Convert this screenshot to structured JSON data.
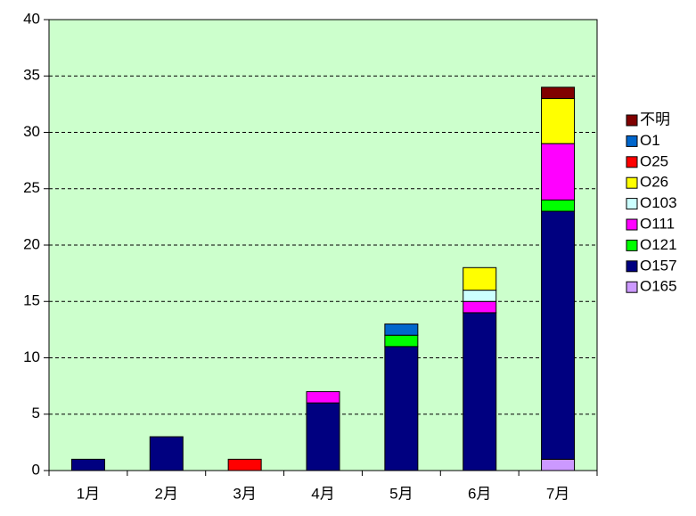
{
  "chart_data": {
    "type": "stacked_bar",
    "categories": [
      "1月",
      "2月",
      "3月",
      "4月",
      "5月",
      "6月",
      "7月"
    ],
    "series": [
      {
        "name": "O165",
        "color": "#cc99ff",
        "values": [
          0,
          0,
          0,
          0,
          0,
          0,
          1
        ]
      },
      {
        "name": "O157",
        "color": "#000080",
        "values": [
          1,
          3,
          0,
          6,
          11,
          14,
          22
        ]
      },
      {
        "name": "O121",
        "color": "#00ff00",
        "values": [
          0,
          0,
          0,
          0,
          1,
          0,
          1
        ]
      },
      {
        "name": "O111",
        "color": "#ff00ff",
        "values": [
          0,
          0,
          0,
          1,
          0,
          1,
          5
        ]
      },
      {
        "name": "O103",
        "color": "#ccffff",
        "values": [
          0,
          0,
          0,
          0,
          0,
          1,
          0
        ]
      },
      {
        "name": "O26",
        "color": "#ffff00",
        "values": [
          0,
          0,
          0,
          0,
          0,
          2,
          4
        ]
      },
      {
        "name": "O25",
        "color": "#ff0000",
        "values": [
          0,
          0,
          1,
          0,
          0,
          0,
          0
        ]
      },
      {
        "name": "O1",
        "color": "#0066cc",
        "values": [
          0,
          0,
          0,
          0,
          1,
          0,
          0
        ]
      },
      {
        "name": "不明",
        "color": "#800000",
        "values": [
          0,
          0,
          0,
          0,
          0,
          0,
          1
        ]
      }
    ],
    "ylim": [
      0,
      40
    ],
    "yticks": [
      0,
      5,
      10,
      15,
      20,
      25,
      30,
      35,
      40
    ],
    "grid": true,
    "background": "#ccffcc",
    "legend": "right"
  }
}
